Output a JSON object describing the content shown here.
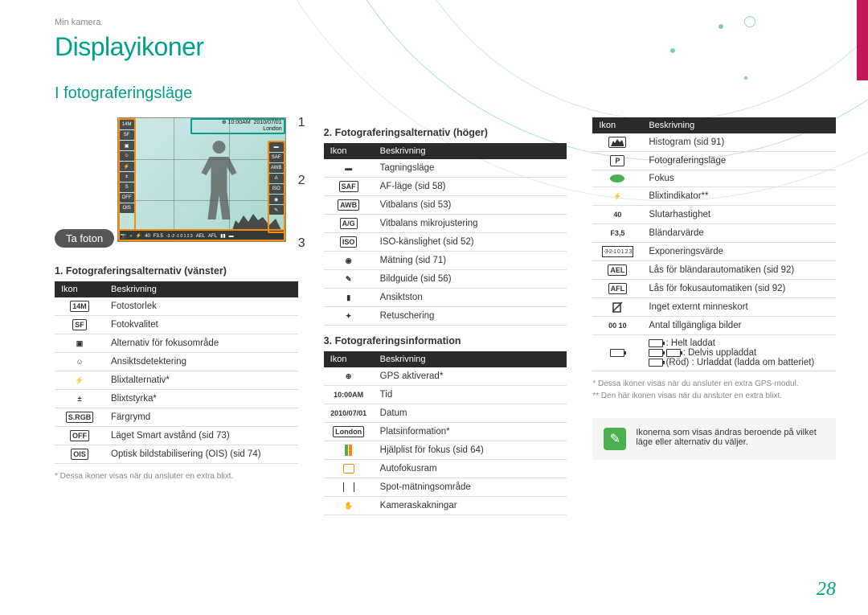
{
  "header": {
    "breadcrumb": "Min kamera",
    "title": "Displayikoner",
    "subtitle": "I fotograferingsläge",
    "pill": "Ta foton"
  },
  "callouts": {
    "c1": "1",
    "c2": "2",
    "c3": "3"
  },
  "camera": {
    "top_time": "10:00AM",
    "top_date": "2010/07/01",
    "top_loc": "London",
    "bottom": [
      "40",
      "F3.5",
      "AEL",
      "AFL"
    ]
  },
  "section1": {
    "title": "1. Fotograferingsalternativ (vänster)",
    "th_icon": "Ikon",
    "th_desc": "Beskrivning",
    "rows": [
      {
        "icon_text": "14M",
        "desc": "Fotostorlek"
      },
      {
        "icon_text": "SF",
        "desc": "Fotokvalitet"
      },
      {
        "icon_text": "▣",
        "desc": "Alternativ för fokusområde"
      },
      {
        "icon_text": "☺",
        "desc": "Ansiktsdetektering"
      },
      {
        "icon_text": "⚡",
        "desc": "Blixtalternativ*"
      },
      {
        "icon_text": "±",
        "desc": "Blixtstyrka*"
      },
      {
        "icon_text": "S.RGB",
        "desc": "Färgrymd"
      },
      {
        "icon_text": "OFF",
        "desc": "Läget Smart avstånd (sid 73)"
      },
      {
        "icon_text": "OIS",
        "desc": "Optisk bildstabilisering (OIS) (sid 74)"
      }
    ],
    "footnote": "* Dessa ikoner visas när du ansluter en extra blixt."
  },
  "section2": {
    "title": "2. Fotograferingsalternativ (höger)",
    "th_icon": "Ikon",
    "th_desc": "Beskrivning",
    "rows": [
      {
        "icon_text": "▬",
        "desc": "Tagningsläge"
      },
      {
        "icon_text": "SAF",
        "desc": "AF-läge (sid 58)"
      },
      {
        "icon_text": "AWB",
        "desc": "Vitbalans (sid  53)"
      },
      {
        "icon_text": "A/G",
        "desc": "Vitbalans mikrojustering"
      },
      {
        "icon_text": "ISO",
        "desc": "ISO-känslighet (sid 52)"
      },
      {
        "icon_text": "◉",
        "desc": "Mätning (sid 71)"
      },
      {
        "icon_text": "✎",
        "desc": "Bildguide (sid 56)"
      },
      {
        "icon_text": "▮",
        "desc": "Ansiktston"
      },
      {
        "icon_text": "✦",
        "desc": "Retuschering"
      }
    ]
  },
  "section3": {
    "title": "3. Fotograferingsinformation",
    "th_icon": "Ikon",
    "th_desc": "Beskrivning",
    "rows": [
      {
        "icon_text": "⊕",
        "desc": "GPS aktiverad*"
      },
      {
        "icon_text": "10:00AM",
        "desc": "Tid"
      },
      {
        "icon_text": "2010/07/01",
        "desc": "Datum"
      },
      {
        "icon_text": "London",
        "desc": "Platsinformation*"
      },
      {
        "icon_type": "bar",
        "desc": "Hjälplist för fokus (sid 64)"
      },
      {
        "icon_type": "af-frame",
        "desc": "Autofokusram"
      },
      {
        "icon_type": "spot",
        "desc": "Spot-mätningsområde"
      },
      {
        "icon_text": "✋",
        "desc": "Kameraskakningar"
      }
    ]
  },
  "section3b": {
    "th_icon": "Ikon",
    "th_desc": "Beskrivning",
    "rows": [
      {
        "icon_type": "histogram",
        "desc": "Histogram (sid 91)"
      },
      {
        "icon_text": "P",
        "desc": "Fotograferingsläge"
      },
      {
        "icon_type": "green-dot",
        "desc": "Fokus"
      },
      {
        "icon_text": "⚡",
        "desc": "Blixtindikator**"
      },
      {
        "icon_text": "40",
        "desc": "Slutarhastighet"
      },
      {
        "icon_text": "F3,5",
        "desc": "Bländarvärde"
      },
      {
        "icon_type": "ev-scale",
        "desc": "Exponeringsvärde"
      },
      {
        "icon_text": "AEL",
        "desc": "Lås för bländarautomatiken (sid 92)"
      },
      {
        "icon_text": "AFL",
        "desc": "Lås för fokusautomatiken (sid 92)"
      },
      {
        "icon_type": "card",
        "desc": "Inget externt minneskort"
      },
      {
        "icon_text": "00 10",
        "desc": "Antal tillgängliga bilder"
      }
    ],
    "battery": {
      "full": " : Helt laddat",
      "partial": " : Delvis uppladdat",
      "empty": " (Röd) : Urladdat (ladda om batteriet)"
    },
    "footnote1": "* Dessa ikoner visas när du ansluter en extra GPS-modul.",
    "footnote2": "** Den här ikonen visas när du ansluter en extra blixt."
  },
  "note": "Ikonerna som visas ändras beroende på vilket läge eller alternativ du väljer.",
  "page_number": "28",
  "colors": {
    "accent": "#00a08a",
    "pink": "#c2185b",
    "orange": "#ff8c00",
    "green": "#4caf50"
  }
}
